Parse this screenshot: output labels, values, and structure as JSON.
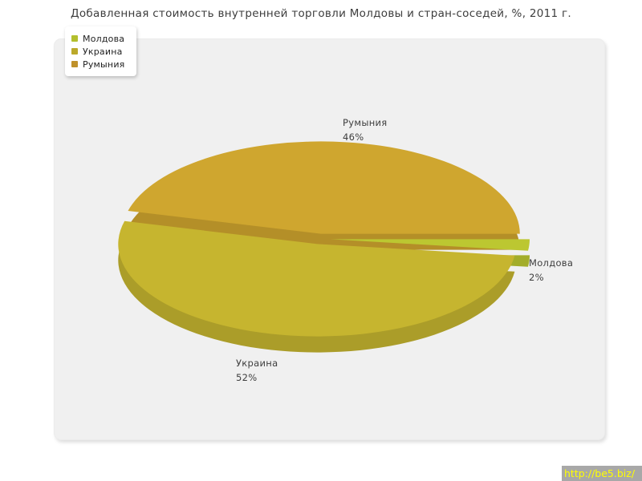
{
  "chart_data": {
    "type": "pie",
    "style": "3d-exploded",
    "title": "Добавленная стоимость внутренней торговли Молдовы и стран-соседей, %, 2011 г.",
    "unit": "%",
    "total": 100,
    "start_angle_deg": 0,
    "direction": "clockwise",
    "legend_position": "top-left",
    "slices": [
      {
        "label": "Молдова",
        "value": 2,
        "color": "#bcc731",
        "side_color": "#a3ad2a",
        "legend_color": "#b3bf2d"
      },
      {
        "label": "Украина",
        "value": 52,
        "color": "#c6b52f",
        "side_color": "#ab9d29",
        "legend_color": "#bba92a"
      },
      {
        "label": "Румыния",
        "value": 46,
        "color": "#cfa62f",
        "side_color": "#b48f28",
        "legend_color": "#bf912b"
      }
    ]
  },
  "watermark": {
    "text": "http://be5.biz/",
    "color": "#ffff00",
    "background": "#a8a8a8"
  }
}
